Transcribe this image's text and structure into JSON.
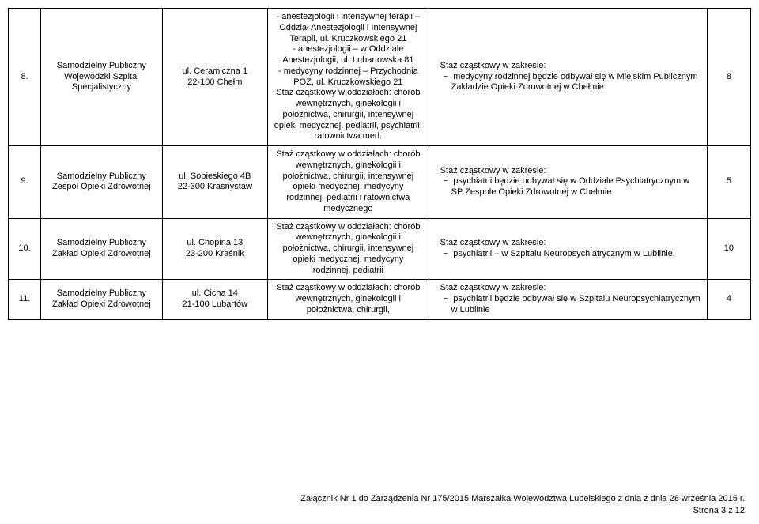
{
  "rows": [
    {
      "num": "8.",
      "name": "Samodzielny Publiczny Wojewódzki Szpital Specjalistyczny",
      "addr": "ul. Ceramiczna 1\n22-100 Chełm",
      "desc": "- anestezjologii i intensywnej terapii – Oddział Anestezjologii i Intensywnej Terapii, ul. Kruczkowskiego 21\n- anestezjologii – w Oddziale Anestezjologii, ul. Lubartowska 81\n- medycyny rodzinnej – Przychodnia POZ, ul. Kruczkowskiego 21\nStaż cząstkowy w oddziałach: chorób wewnętrznych, ginekologii i położnictwa, chirurgii, intensywnej opieki medycznej, pediatrii, psychiatrii, ratownictwa med.",
      "staz_header": "Staż cząstkowy w zakresie:",
      "staz_item": "medycyny rodzinnej będzie odbywał się w Miejskim Publicznym Zakładzie Opieki Zdrowotnej w Chełmie",
      "count": "8"
    },
    {
      "num": "9.",
      "name": "Samodzielny Publiczny Zespół Opieki Zdrowotnej",
      "addr": "ul. Sobieskiego 4B\n22-300 Krasnystaw",
      "desc": "Staż cząstkowy w oddziałach: chorób wewnętrznych, ginekologii i położnictwa, chirurgii, intensywnej opieki medycznej, medycyny rodzinnej, pediatrii i ratownictwa medycznego",
      "staz_header": "Staż cząstkowy w zakresie:",
      "staz_item": "psychiatrii będzie odbywał się w Oddziale Psychiatrycznym w SP Zespole Opieki Zdrowotnej w Chełmie",
      "count": "5"
    },
    {
      "num": "10.",
      "name": "Samodzielny Publiczny Zakład Opieki Zdrowotnej",
      "addr": "ul. Chopina 13\n23-200 Kraśnik",
      "desc": "Staż cząstkowy w oddziałach: chorób wewnętrznych, ginekologii i położnictwa, chirurgii, intensywnej opieki medycznej, medycyny rodzinnej, pediatrii",
      "staz_header": "Staż cząstkowy w zakresie:",
      "staz_item": "psychiatrii – w Szpitalu Neuropsychiatrycznym w Lublinie.",
      "count": "10"
    },
    {
      "num": "11.",
      "name": "Samodzielny Publiczny Zakład Opieki Zdrowotnej",
      "addr": "ul. Cicha 14\n21-100 Lubartów",
      "desc": "Staż cząstkowy w oddziałach: chorób wewnętrznych, ginekologii i położnictwa, chirurgii,",
      "staz_header": "Staż cząstkowy w zakresie:",
      "staz_item": "psychiatrii będzie odbywał się w Szpitalu Neuropsychiatrycznym w Lublinie",
      "count": "4"
    }
  ],
  "footer": {
    "line1": "Załącznik Nr 1 do Zarządzenia Nr 175/2015 Marszałka Województwa Lubelskiego z dnia z dnia 28 września 2015 r.",
    "line2": "Strona 3 z 12"
  },
  "style": {
    "bullet": "−"
  }
}
